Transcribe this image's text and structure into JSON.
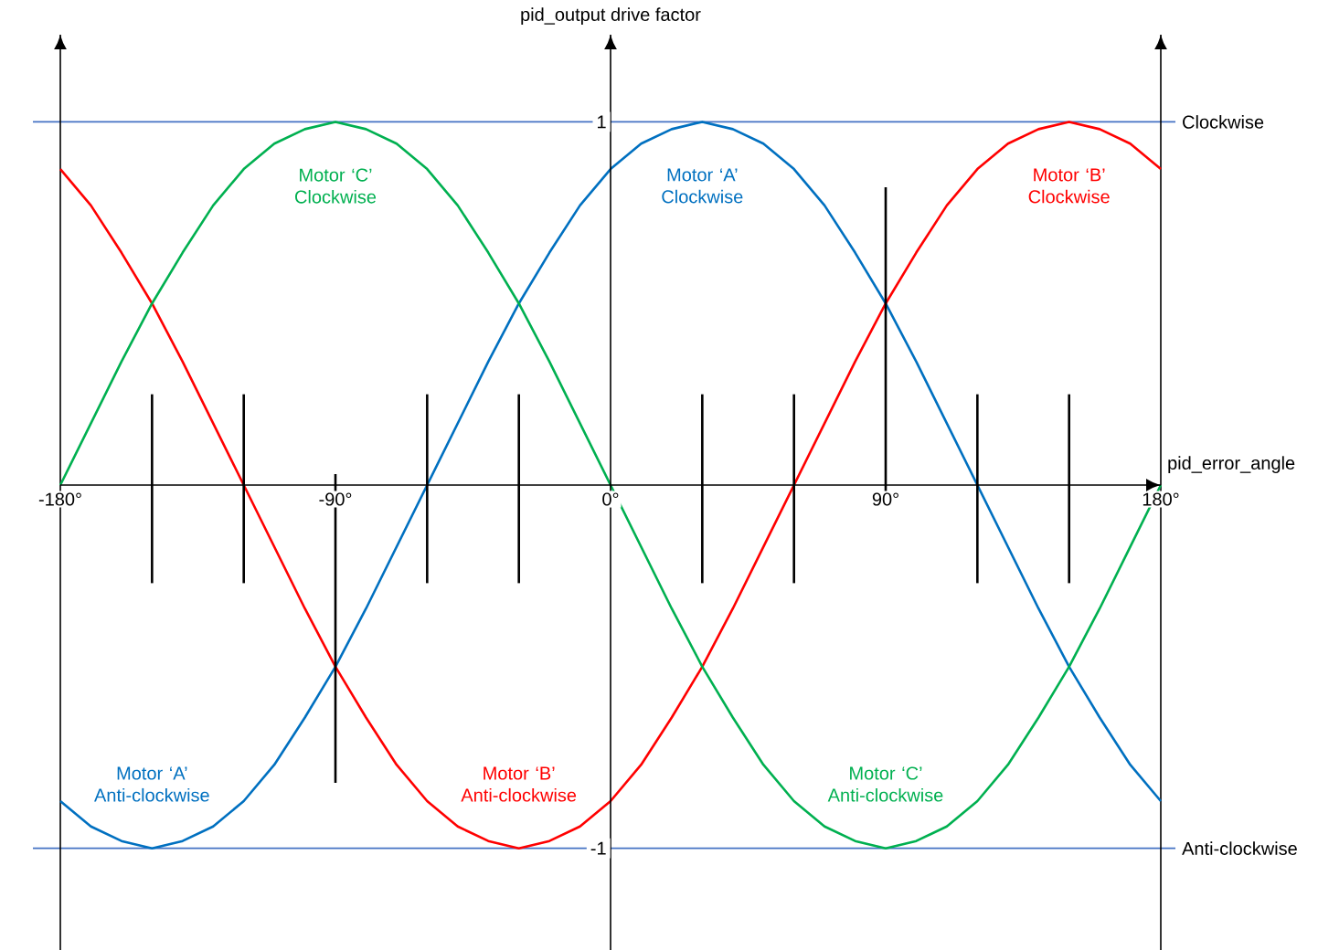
{
  "chart_data": {
    "type": "line",
    "xlabel": "pid_error_angle",
    "ylabel": "pid_output drive factor",
    "xlim": [
      -180,
      180
    ],
    "ylim": [
      -1.28,
      1.24
    ],
    "xticks": [
      {
        "value": -180,
        "label": "-180°"
      },
      {
        "value": -90,
        "label": "-90°"
      },
      {
        "value": 0,
        "label": "0°"
      },
      {
        "value": 90,
        "label": "90°"
      },
      {
        "value": 180,
        "label": "180°"
      }
    ],
    "yticks": [
      1,
      -1
    ],
    "x": [
      -180,
      -170,
      -160,
      -150,
      -140,
      -130,
      -120,
      -110,
      -100,
      -90,
      -80,
      -70,
      -60,
      -50,
      -40,
      -30,
      -20,
      -10,
      0,
      10,
      20,
      30,
      40,
      50,
      60,
      70,
      80,
      90,
      100,
      110,
      120,
      130,
      140,
      150,
      160,
      170,
      180
    ],
    "series": [
      {
        "color": "#0070c0",
        "values": [
          -0.87,
          -0.94,
          -0.98,
          -1,
          -0.98,
          -0.94,
          -0.87,
          -0.77,
          -0.64,
          -0.5,
          -0.34,
          -0.17,
          0,
          0.17,
          0.34,
          0.5,
          0.64,
          0.77,
          0.87,
          0.94,
          0.98,
          1,
          0.98,
          0.94,
          0.87,
          0.77,
          0.64,
          0.5,
          0.34,
          0.17,
          0,
          -0.17,
          -0.34,
          -0.5,
          -0.64,
          -0.77,
          -0.87
        ]
      },
      {
        "color": "#ff0000",
        "values": [
          0.87,
          0.77,
          0.64,
          0.5,
          0.34,
          0.17,
          0,
          -0.17,
          -0.34,
          -0.5,
          -0.64,
          -0.77,
          -0.87,
          -0.94,
          -0.98,
          -1,
          -0.98,
          -0.94,
          -0.87,
          -0.77,
          -0.64,
          -0.5,
          -0.34,
          -0.17,
          0,
          0.17,
          0.34,
          0.5,
          0.64,
          0.77,
          0.87,
          0.94,
          0.98,
          1,
          0.98,
          0.94,
          0.87
        ]
      },
      {
        "color": "#00b050",
        "values": [
          0,
          0.17,
          0.34,
          0.5,
          0.64,
          0.77,
          0.87,
          0.94,
          0.98,
          1,
          0.98,
          0.94,
          0.87,
          0.77,
          0.64,
          0.5,
          0.34,
          0.17,
          0,
          -0.17,
          -0.34,
          -0.5,
          -0.64,
          -0.77,
          -0.87,
          -0.94,
          -0.98,
          -1,
          -0.98,
          -0.94,
          -0.87,
          -0.77,
          -0.64,
          -0.5,
          -0.34,
          -0.17,
          0
        ]
      },
      {
        "color": "#000000",
        "x": [
          -150,
          -150
        ],
        "values": [
          0.25,
          -0.27
        ]
      },
      {
        "color": "#000000",
        "x": [
          -120,
          -120
        ],
        "values": [
          0.25,
          -0.27
        ]
      },
      {
        "color": "#000000",
        "x": [
          -90,
          -90
        ],
        "values": [
          0.03,
          -0.82
        ]
      },
      {
        "color": "#000000",
        "x": [
          -60,
          -60
        ],
        "values": [
          0.25,
          -0.27
        ]
      },
      {
        "color": "#000000",
        "x": [
          -30,
          -30
        ],
        "values": [
          0.25,
          -0.27
        ]
      },
      {
        "color": "#000000",
        "x": [
          30,
          30
        ],
        "values": [
          0.25,
          -0.27
        ]
      },
      {
        "color": "#000000",
        "x": [
          60,
          60
        ],
        "values": [
          0.25,
          -0.27
        ]
      },
      {
        "color": "#000000",
        "x": [
          90,
          90
        ],
        "values": [
          0.82,
          -0.04
        ]
      },
      {
        "color": "#000000",
        "x": [
          120,
          120
        ],
        "values": [
          0.25,
          -0.27
        ]
      },
      {
        "color": "#000000",
        "x": [
          150,
          150
        ],
        "values": [
          0.25,
          -0.27
        ]
      }
    ],
    "ref_lines": [
      {
        "axis": "y",
        "value": 1,
        "label": "Clockwise",
        "color": "#4472c4"
      },
      {
        "axis": "y",
        "value": -1,
        "label": "Anti-clockwise",
        "color": "#4472c4"
      },
      {
        "axis": "x",
        "value": -180,
        "color": "#000000"
      },
      {
        "axis": "x",
        "value": 180,
        "color": "#000000"
      }
    ],
    "annotations": [
      {
        "text": "Motor ‘C’ Clockwise",
        "x": -90,
        "y": 1
      },
      {
        "text": "Motor ‘A’ Clockwise",
        "x": 30,
        "y": 1
      },
      {
        "text": "Motor ‘B’ Clockwise",
        "x": 150,
        "y": 1
      },
      {
        "text": "Motor ‘A’ Anti-clockwise",
        "x": -150,
        "y": -1
      },
      {
        "text": "Motor ‘B’ Anti-clockwise",
        "x": -30,
        "y": -1
      },
      {
        "text": "Motor ‘C’ Anti-clockwise",
        "x": 90,
        "y": -1
      }
    ]
  }
}
